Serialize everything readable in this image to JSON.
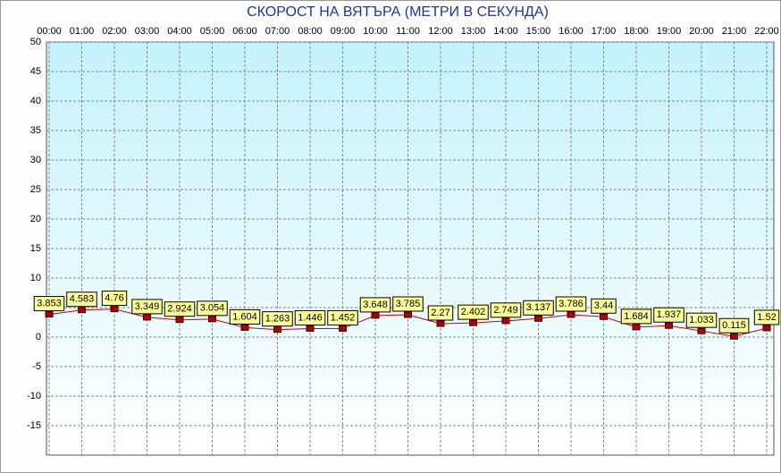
{
  "chart_data": {
    "type": "line",
    "title": "СКОРОСТ НА ВЯТЪРА (МЕТРИ В СЕКУНДА)",
    "categories": [
      "00:00",
      "01:00",
      "02:00",
      "03:00",
      "04:00",
      "05:00",
      "06:00",
      "07:00",
      "08:00",
      "09:00",
      "10:00",
      "11:00",
      "12:00",
      "13:00",
      "14:00",
      "15:00",
      "16:00",
      "17:00",
      "18:00",
      "19:00",
      "20:00",
      "21:00",
      "22:00"
    ],
    "values": [
      3.853,
      4.583,
      4.76,
      3.349,
      2.924,
      3.054,
      1.604,
      1.263,
      1.446,
      1.452,
      3.648,
      3.785,
      2.27,
      2.402,
      2.749,
      3.137,
      3.786,
      3.44,
      1.684,
      1.937,
      1.033,
      0.115,
      1.52
    ],
    "color": "#cc0000",
    "ylim": [
      -20,
      50
    ],
    "yticks": [
      -15,
      -10,
      -5,
      0,
      5,
      10,
      15,
      20,
      25,
      30,
      35,
      40,
      45,
      50
    ],
    "grid": true
  }
}
